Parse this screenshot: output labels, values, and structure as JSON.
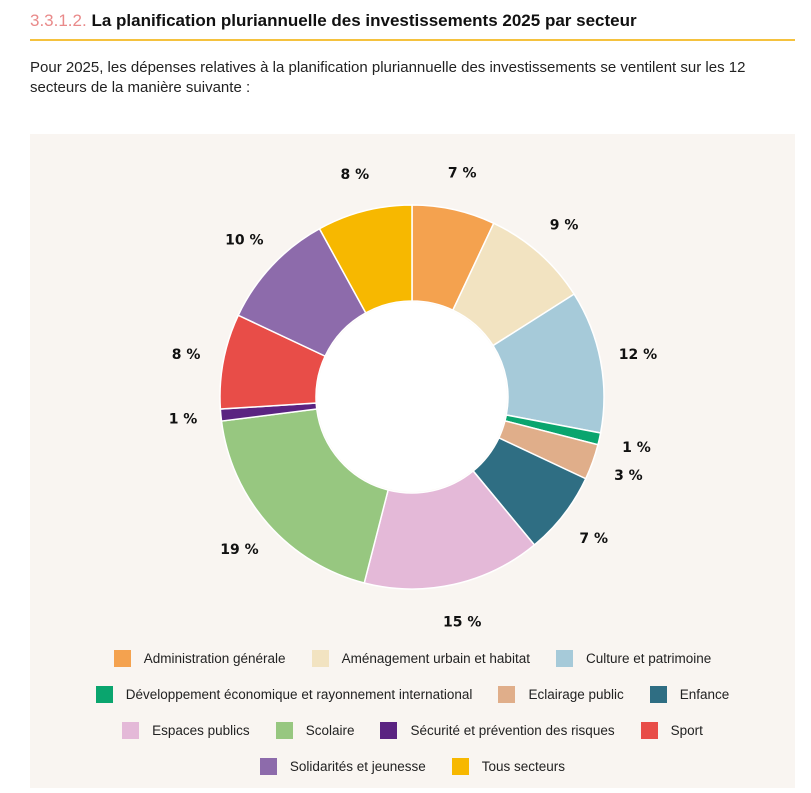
{
  "section": {
    "number": "3.3.1.2.",
    "title": "La planification pluriannuelle des investissements 2025 par secteur",
    "intro": "Pour 2025, les dépenses relatives à la planification pluriannuelle des investissements se ventilent sur les 12 secteurs de la manière suivante :"
  },
  "chart_data": {
    "type": "pie",
    "variant": "donut",
    "legend_position": "bottom",
    "categories": [
      "Administration générale",
      "Aménagement urbain et habitat",
      "Culture et patrimoine",
      "Développement économique et rayonnement international",
      "Eclairage public",
      "Enfance",
      "Espaces publics",
      "Scolaire",
      "Sécurité et prévention des risques",
      "Sport",
      "Solidarités et jeunesse",
      "Tous secteurs"
    ],
    "values": [
      7,
      9,
      12,
      1,
      3,
      7,
      15,
      19,
      1,
      8,
      10,
      8
    ],
    "labels": [
      "7 %",
      "9 %",
      "12 %",
      "1 %",
      "3 %",
      "7 %",
      "15 %",
      "19 %",
      "1 %",
      "8 %",
      "10 %",
      "8 %"
    ],
    "colors": [
      "#f4a24f",
      "#f2e3c1",
      "#a6cad9",
      "#0aa56e",
      "#e0ae8a",
      "#2f6e83",
      "#e4b9d8",
      "#97c780",
      "#5a2381",
      "#e84d48",
      "#8d6bab",
      "#f7b800"
    ],
    "unit": "%"
  }
}
